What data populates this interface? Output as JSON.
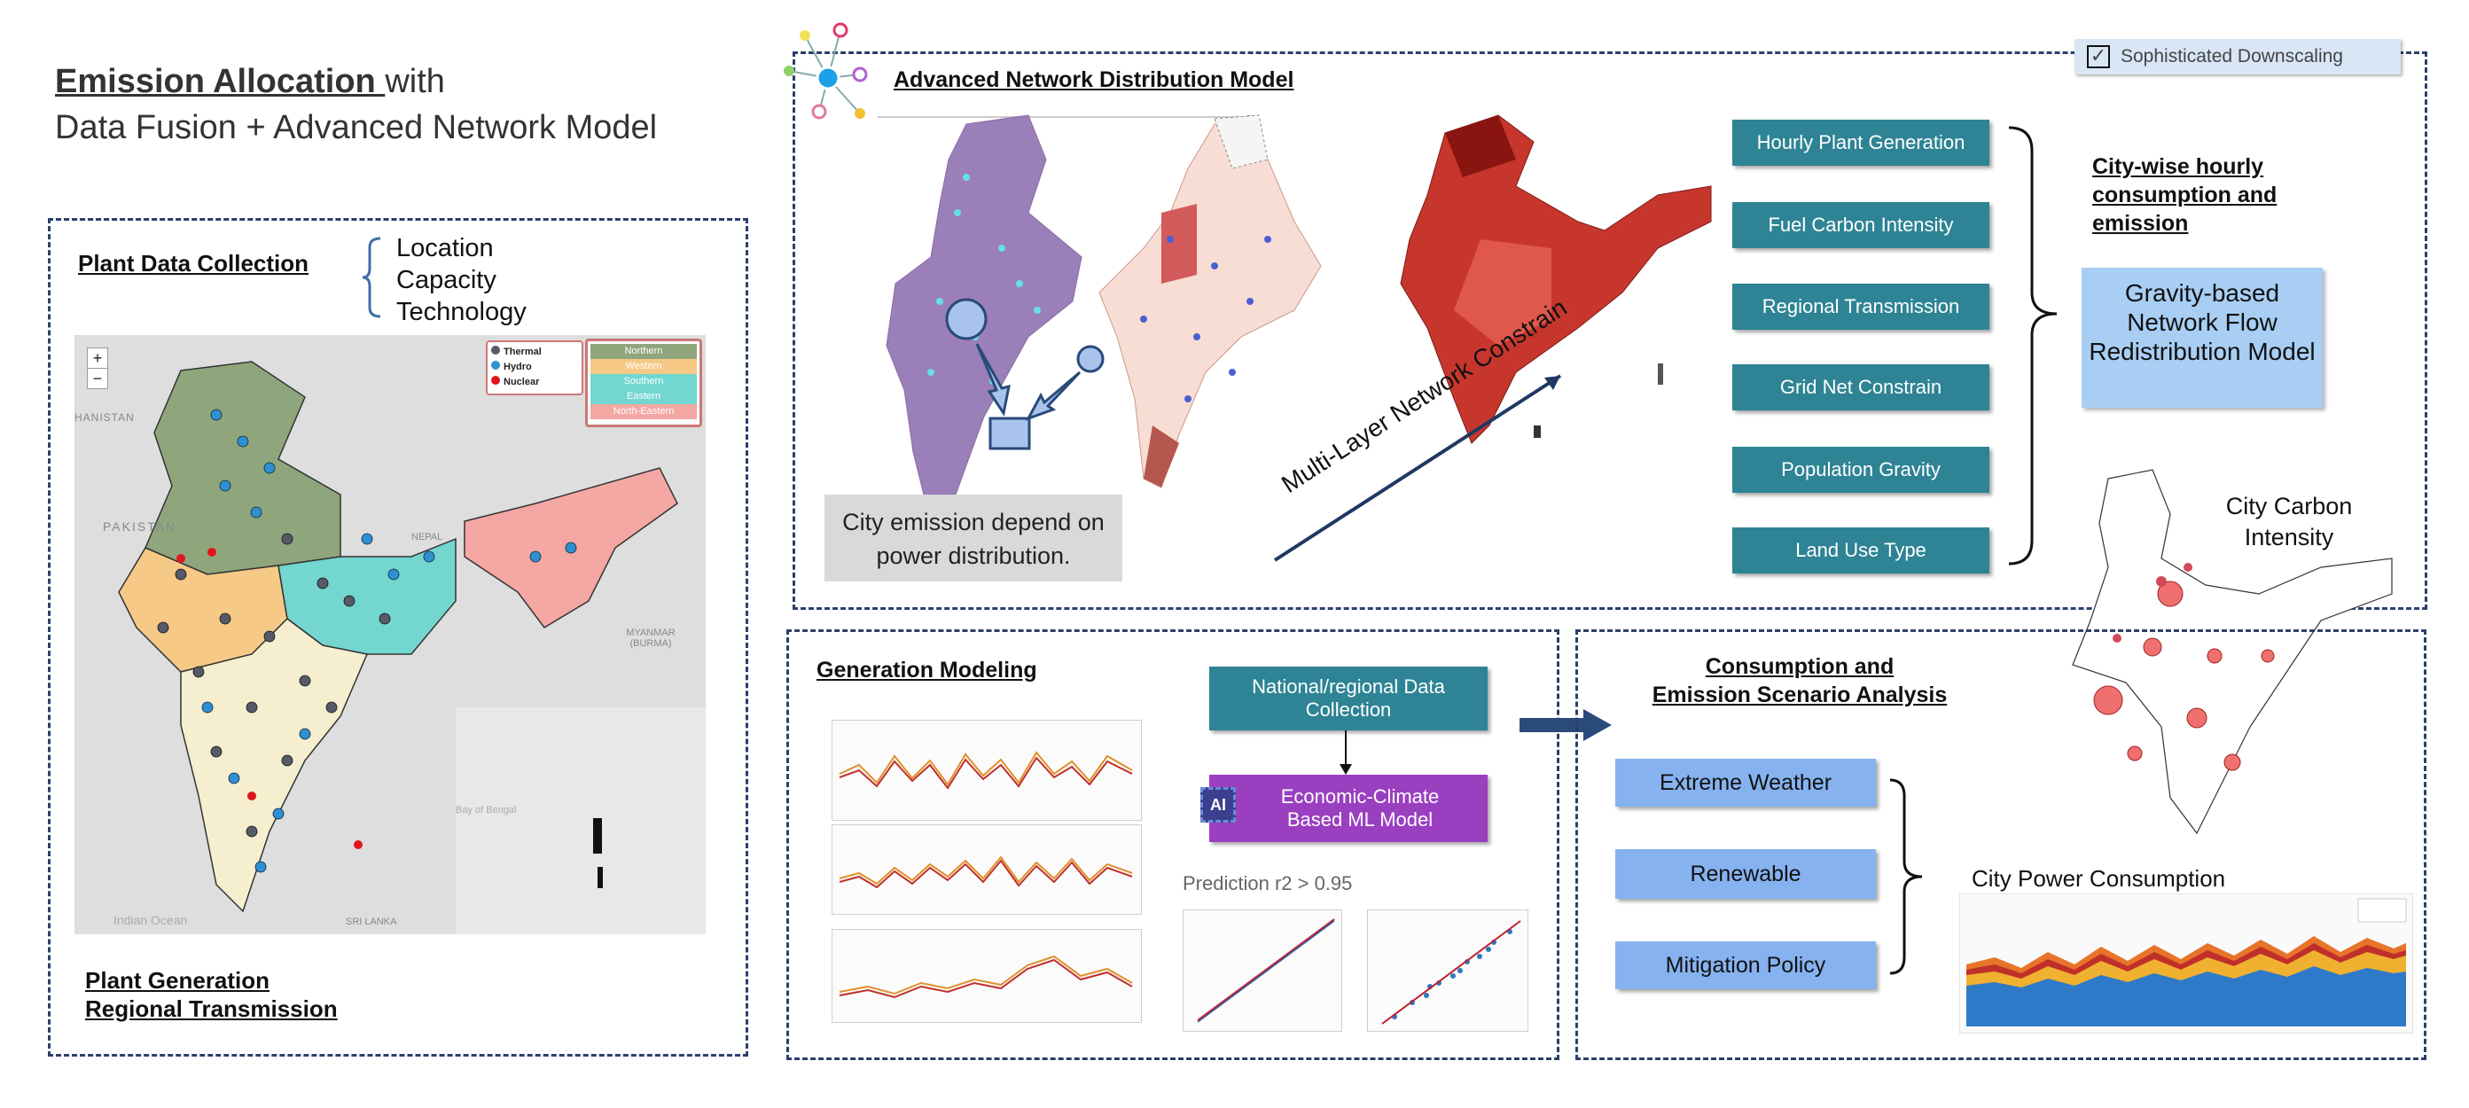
{
  "title": {
    "line1_bold": "Emission Allocation ",
    "line1_rest": "with",
    "line2": "Data Fusion + Advanced Network Model"
  },
  "plant_panel": {
    "heading": "Plant Data Collection",
    "attributes": [
      "Location",
      "Capacity",
      "Technology"
    ],
    "footer_line1": "Plant Generation",
    "footer_line2": "Regional Transmission",
    "map": {
      "zoom_in": "+",
      "zoom_out": "−",
      "legend_types": [
        {
          "label": "Thermal",
          "color": "#555a66"
        },
        {
          "label": "Hydro",
          "color": "#2f8fd0"
        },
        {
          "label": "Nuclear",
          "color": "#e0161c"
        }
      ],
      "legend_regions": [
        {
          "label": "Northern",
          "color": "#8fa67c"
        },
        {
          "label": "Western",
          "color": "#f7c987"
        },
        {
          "label": "Southern",
          "color": "#70d8d0"
        },
        {
          "label": "Eastern",
          "color": "#73d6cf"
        },
        {
          "label": "North-Eastern",
          "color": "#f4a7a3"
        }
      ],
      "labels": [
        "HANISTAN",
        "PAKISTAN",
        "NEPAL",
        "MYANMAR (BURMA)",
        "Bay of Bengal",
        "Indian Ocean",
        "SRI LANKA"
      ]
    }
  },
  "network_panel": {
    "heading": "Advanced Network Distribution Model",
    "badge": "Sophisticated Downscaling",
    "factors": [
      "Hourly Plant Generation",
      "Fuel Carbon Intensity",
      "Regional Transmission",
      "Grid Net Constrain",
      "Population Gravity",
      "Land Use Type"
    ],
    "outcome": "City-wise  hourly consumption and emission",
    "gravity_model": "Gravity-based Network Flow Redistribution Model",
    "note": "City emission depend on power distribution.",
    "arrow_label": "Multi-Layer Network Constrain"
  },
  "generation_panel": {
    "heading": "Generation Modeling",
    "collection": "National/regional Data Collection",
    "ai_badge": "AI",
    "ml_model": "Economic-Climate Based ML Model",
    "prediction": "Prediction r2 > 0.95"
  },
  "consumption_panel": {
    "heading_line1": "Consumption and",
    "heading_line2": "Emission Scenario Analysis",
    "scenarios": [
      "Extreme Weather",
      "Renewable",
      "Mitigation Policy"
    ],
    "chart_title": "City Power Consumption"
  },
  "city_carbon": {
    "label": "City Carbon Intensity"
  },
  "colors": {
    "panel_border": "#2a3f6b",
    "teal": "#2e8494",
    "scenario_blue": "#86b2f0",
    "gravity_blue": "#a8cef4",
    "purple": "#9a3fc0"
  }
}
